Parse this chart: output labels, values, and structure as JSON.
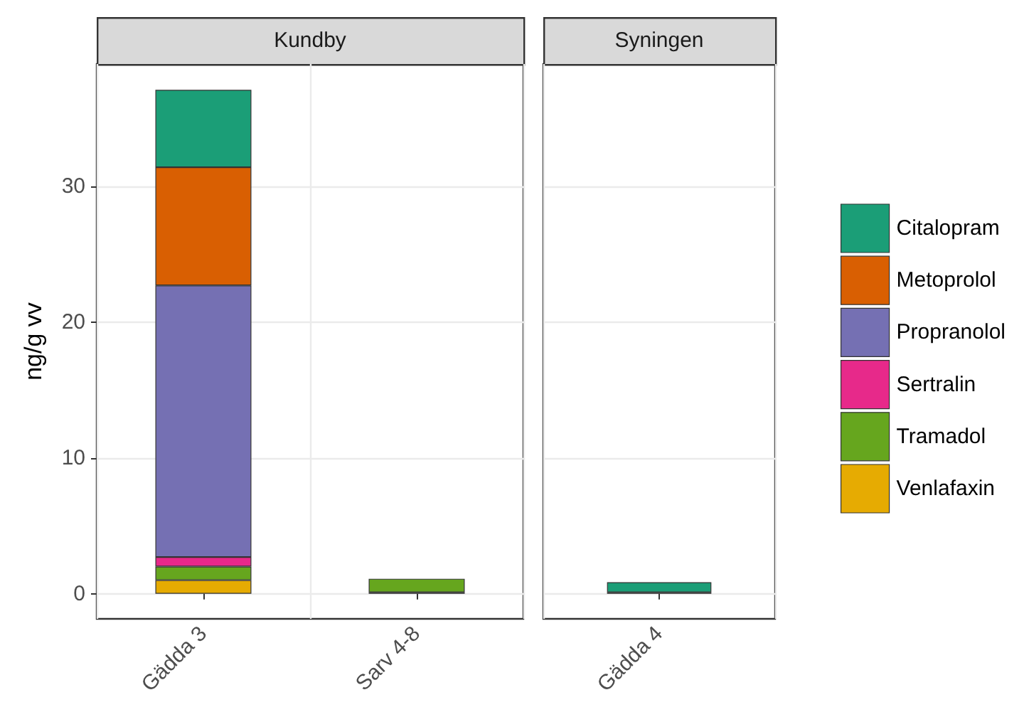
{
  "chart_data": [
    {
      "type": "bar",
      "title": "Kundby",
      "ylabel": "ng/g vv",
      "categories": [
        "Gädda 3",
        "Sarv 4-8"
      ],
      "stacked": true,
      "ylim": [
        -1.85,
        39.0
      ],
      "yticks": [
        0,
        10,
        20,
        30
      ],
      "grid": true,
      "legend": false,
      "series": [
        {
          "color": "#e6ab02",
          "values": [
            1.0,
            0.1
          ]
        },
        {
          "color": "#66a61e",
          "values": [
            1.0,
            1.0
          ]
        },
        {
          "color": "#e7298a",
          "values": [
            0.7,
            null
          ]
        },
        {
          "color": "#7570b3",
          "values": [
            20.0,
            null
          ]
        },
        {
          "color": "#d95f02",
          "values": [
            8.7,
            null
          ]
        },
        {
          "color": "#1b9e77",
          "values": [
            5.7,
            null
          ]
        }
      ]
    },
    {
      "type": "bar",
      "title": "Syningen",
      "categories": [
        "Gädda 4"
      ],
      "stacked": true,
      "ylim": [
        -1.85,
        39.0
      ],
      "yticks": [
        0,
        10,
        20,
        30
      ],
      "grid": true,
      "legend": "right",
      "tick_labels": "x",
      "series": [
        {
          "name": "Venlafaxin",
          "color": "#e6ab02",
          "values": [
            0.1
          ]
        },
        {
          "name": "Tramadol",
          "color": "#66a61e",
          "values": [
            null
          ]
        },
        {
          "name": "Sertralin",
          "color": "#e7298a",
          "values": [
            null
          ]
        },
        {
          "name": "Propranolol",
          "color": "#7570b3",
          "values": [
            null
          ]
        },
        {
          "name": "Metoprolol",
          "color": "#d95f02",
          "values": [
            null
          ]
        },
        {
          "name": "Citalopram",
          "color": "#1b9e77",
          "values": [
            0.75
          ]
        }
      ]
    }
  ]
}
